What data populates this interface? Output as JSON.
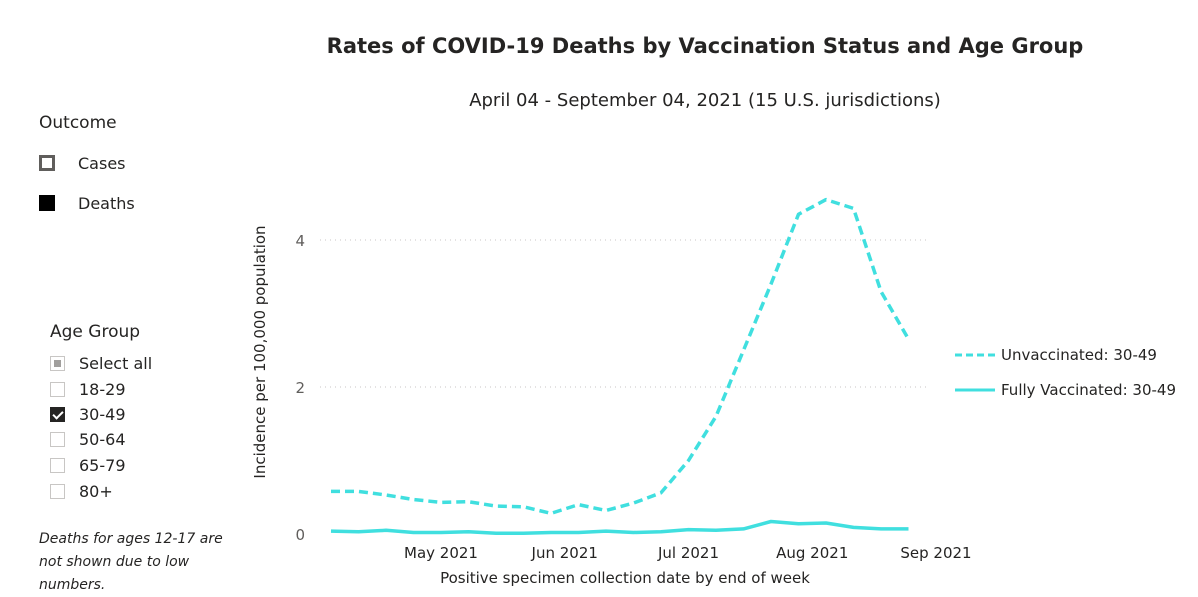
{
  "chart_data": {
    "type": "line",
    "title": "Rates of COVID-19 Deaths by Vaccination Status and Age Group",
    "subtitle": "April 04 - September 04, 2021 (15 U.S. jurisdictions)",
    "xlabel": "Positive specimen collection date by end of week",
    "ylabel": "Incidence per 100,000 population",
    "ylim": [
      0,
      5
    ],
    "y_ticks": [
      {
        "value": 0,
        "label": "0"
      },
      {
        "value": 2,
        "label": "2"
      },
      {
        "value": 4,
        "label": "4"
      }
    ],
    "x_ticks": [
      {
        "week": 4,
        "label": "May 2021"
      },
      {
        "week": 8.5,
        "label": "Jun 2021"
      },
      {
        "week": 13,
        "label": "Jul 2021"
      },
      {
        "week": 17.5,
        "label": "Aug 2021"
      },
      {
        "week": 22,
        "label": "Sep 2021"
      }
    ],
    "grid": "horizontal dotted",
    "legend_position": "right",
    "series": [
      {
        "name": "Unvaccinated: 30-49",
        "style": "dashed",
        "color": "#40DFDF",
        "values": [
          0.58,
          0.58,
          0.53,
          0.47,
          0.43,
          0.44,
          0.38,
          0.37,
          0.28,
          0.4,
          0.32,
          0.42,
          0.56,
          1.0,
          1.6,
          2.5,
          3.4,
          4.35,
          4.55,
          4.43,
          3.3,
          2.65
        ]
      },
      {
        "name": "Fully Vaccinated: 30-49",
        "style": "solid",
        "color": "#40DFDF",
        "values": [
          0.04,
          0.03,
          0.05,
          0.02,
          0.02,
          0.03,
          0.01,
          0.01,
          0.02,
          0.02,
          0.04,
          0.02,
          0.03,
          0.06,
          0.05,
          0.07,
          0.17,
          0.14,
          0.15,
          0.09,
          0.07,
          0.07
        ]
      }
    ]
  },
  "filters": {
    "outcome": {
      "heading": "Outcome",
      "items": [
        {
          "label": "Cases",
          "selected": false
        },
        {
          "label": "Deaths",
          "selected": true
        }
      ]
    },
    "age_group": {
      "heading": "Age Group",
      "items": [
        {
          "label": "Select all",
          "state": "partial"
        },
        {
          "label": "18-29",
          "state": "unchecked"
        },
        {
          "label": "30-49",
          "state": "checked"
        },
        {
          "label": "50-64",
          "state": "unchecked"
        },
        {
          "label": "65-79",
          "state": "unchecked"
        },
        {
          "label": "80+",
          "state": "unchecked"
        }
      ]
    }
  },
  "footnote": "Deaths for ages 12-17 are not shown due to low numbers."
}
